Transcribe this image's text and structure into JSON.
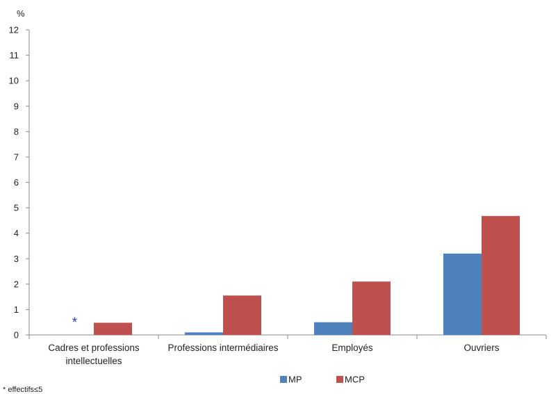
{
  "chart_data": {
    "type": "bar",
    "y_unit": "%",
    "ylim": [
      0,
      12
    ],
    "yticks": [
      0,
      1,
      2,
      3,
      4,
      5,
      6,
      7,
      8,
      9,
      10,
      11,
      12
    ],
    "grid": false,
    "legend_position": "bottom",
    "categories": [
      [
        "Cadres et professions",
        "intellectuelles"
      ],
      [
        "Professions intermédiaires"
      ],
      [
        "Employés"
      ],
      [
        "Ouvriers"
      ]
    ],
    "series": [
      {
        "name": "MP",
        "color": "#4f81bd",
        "values": [
          null,
          0.1,
          0.5,
          3.2
        ]
      },
      {
        "name": "MCP",
        "color": "#c0504d",
        "values": [
          0.48,
          1.55,
          2.1,
          4.68
        ]
      }
    ],
    "annotations": [
      {
        "category_index": 0,
        "series": "MP",
        "text": "*",
        "color": "#1f3fbf"
      }
    ]
  },
  "footnote": "* effectifs≤5"
}
